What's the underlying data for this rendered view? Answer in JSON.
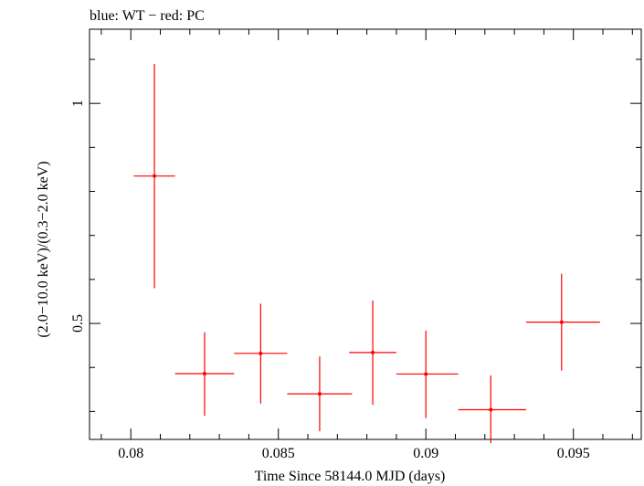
{
  "chart_data": {
    "type": "scatter",
    "title": "blue: WT − red: PC",
    "xlabel": "Time Since 58144.0 MJD (days)",
    "ylabel": "(2.0−10.0 keV)/(0.3−2.0 keV)",
    "xlim": [
      0.0786,
      0.0973
    ],
    "ylim": [
      0.2365,
      1.1685
    ],
    "x_ticks": [
      {
        "value": 0.08,
        "label": "0.08"
      },
      {
        "value": 0.085,
        "label": "0.085"
      },
      {
        "value": 0.09,
        "label": "0.09"
      },
      {
        "value": 0.095,
        "label": "0.095"
      }
    ],
    "y_ticks": [
      {
        "value": 0.5,
        "label": "0.5"
      },
      {
        "value": 1,
        "label": "1"
      }
    ],
    "series": [
      {
        "color": "#ff0000",
        "points": [
          {
            "x": 0.0808,
            "xlo": 0.0801,
            "xhi": 0.0815,
            "y": 0.835,
            "ylo": 0.58,
            "yhi": 1.09
          },
          {
            "x": 0.0825,
            "xlo": 0.0815,
            "xhi": 0.0835,
            "y": 0.386,
            "ylo": 0.29,
            "yhi": 0.48
          },
          {
            "x": 0.0844,
            "xlo": 0.0835,
            "xhi": 0.0853,
            "y": 0.432,
            "ylo": 0.318,
            "yhi": 0.545
          },
          {
            "x": 0.0864,
            "xlo": 0.0853,
            "xhi": 0.0875,
            "y": 0.34,
            "ylo": 0.255,
            "yhi": 0.425
          },
          {
            "x": 0.0882,
            "xlo": 0.0874,
            "xhi": 0.089,
            "y": 0.434,
            "ylo": 0.315,
            "yhi": 0.552
          },
          {
            "x": 0.09,
            "xlo": 0.089,
            "xhi": 0.0911,
            "y": 0.385,
            "ylo": 0.285,
            "yhi": 0.484
          },
          {
            "x": 0.0922,
            "xlo": 0.0911,
            "xhi": 0.0934,
            "y": 0.304,
            "ylo": 0.228,
            "yhi": 0.382
          },
          {
            "x": 0.0946,
            "xlo": 0.0934,
            "xhi": 0.0959,
            "y": 0.503,
            "ylo": 0.393,
            "yhi": 0.613
          }
        ]
      }
    ]
  }
}
